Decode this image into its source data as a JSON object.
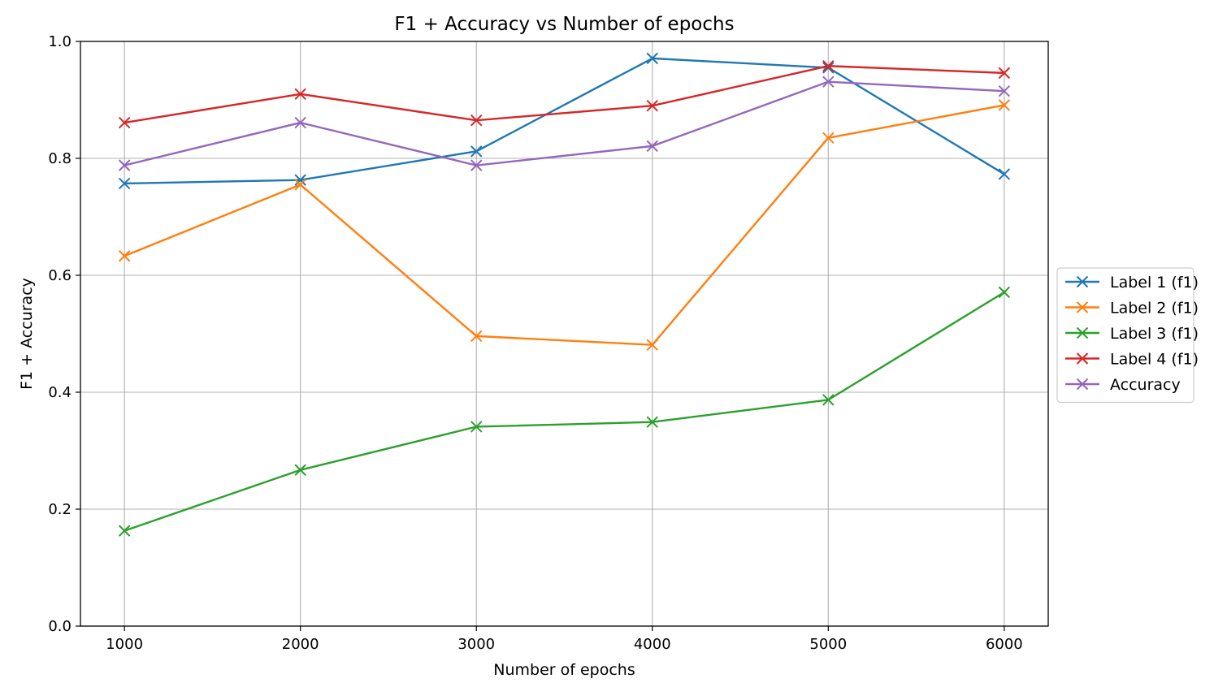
{
  "chart_data": {
    "type": "line",
    "title": "F1 + Accuracy vs Number of epochs",
    "xlabel": "Number of epochs",
    "ylabel": "F1 + Accuracy",
    "x": [
      1000,
      2000,
      3000,
      4000,
      5000,
      6000
    ],
    "xlim": [
      750,
      6250
    ],
    "ylim": [
      0.0,
      1.0
    ],
    "xticks": [
      1000,
      2000,
      3000,
      4000,
      5000,
      6000
    ],
    "yticks": [
      0.0,
      0.2,
      0.4,
      0.6,
      0.8,
      1.0
    ],
    "xtick_labels": [
      "1000",
      "2000",
      "3000",
      "4000",
      "5000",
      "6000"
    ],
    "ytick_labels": [
      "0.0",
      "0.2",
      "0.4",
      "0.6",
      "0.8",
      "1.0"
    ],
    "grid": true,
    "marker": "x",
    "legend_position": "outside-right",
    "series": [
      {
        "name": "Label 1 (f1)",
        "color": "#1f77b4",
        "values": [
          0.757,
          0.763,
          0.812,
          0.971,
          0.955,
          0.773
        ]
      },
      {
        "name": "Label 2 (f1)",
        "color": "#ff7f0e",
        "values": [
          0.633,
          0.755,
          0.496,
          0.481,
          0.835,
          0.891
        ]
      },
      {
        "name": "Label 3 (f1)",
        "color": "#2ca02c",
        "values": [
          0.163,
          0.267,
          0.341,
          0.349,
          0.387,
          0.571
        ]
      },
      {
        "name": "Label 4 (f1)",
        "color": "#d62728",
        "values": [
          0.861,
          0.91,
          0.865,
          0.89,
          0.958,
          0.946
        ]
      },
      {
        "name": "Accuracy",
        "color": "#9467bd",
        "values": [
          0.788,
          0.861,
          0.788,
          0.821,
          0.931,
          0.915
        ]
      }
    ]
  }
}
